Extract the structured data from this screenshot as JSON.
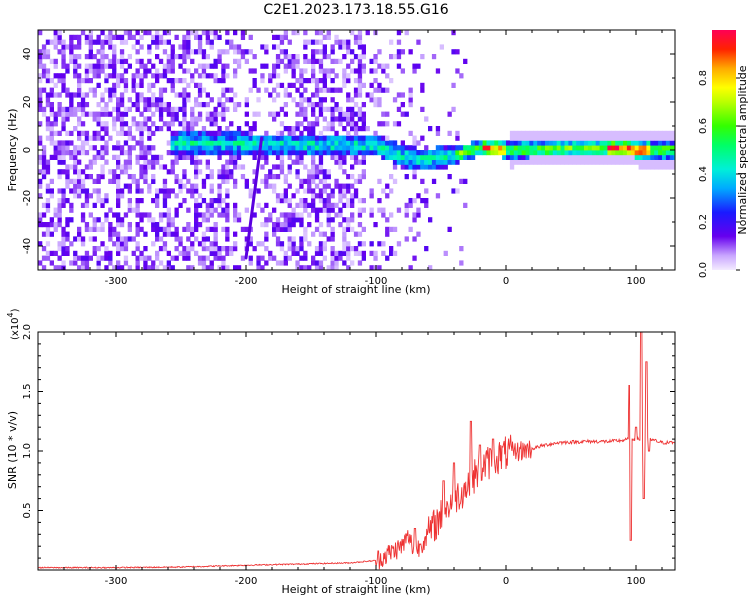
{
  "chart_data": [
    {
      "type": "heatmap",
      "title": "C2E1.2023.173.18.55.G16",
      "xlabel": "Height of straight line (km)",
      "ylabel": "Frequency (Hz)",
      "xlim": [
        -360,
        130
      ],
      "ylim": [
        -50,
        50
      ],
      "xticks": [
        -300,
        -200,
        -100,
        0,
        100
      ],
      "yticks": [
        -40,
        -20,
        0,
        20,
        40
      ],
      "colorbar": {
        "label": "Normalized spectral amplitude",
        "range": [
          0.0,
          1.0
        ],
        "ticks": [
          "0.0",
          "0.2",
          "0.4",
          "0.6",
          "0.8"
        ]
      },
      "ridge": [
        {
          "x": -250,
          "f": 3
        },
        {
          "x": -200,
          "f": 2.5
        },
        {
          "x": -150,
          "f": 2
        },
        {
          "x": -100,
          "f": 2
        },
        {
          "x": -80,
          "f": -3
        },
        {
          "x": -60,
          "f": -4
        },
        {
          "x": -40,
          "f": -2
        },
        {
          "x": -20,
          "f": 1
        },
        {
          "x": 0,
          "f": 0
        },
        {
          "x": 80,
          "f": 1
        },
        {
          "x": 100,
          "f": 0
        },
        {
          "x": 130,
          "f": 0
        }
      ],
      "slant_streak": {
        "x_top": -188,
        "f_top": 5,
        "x_bottom": -200,
        "f_bottom": -45
      }
    },
    {
      "type": "line",
      "xlabel": "Height of straight line (km)",
      "ylabel": "SNR (10 * v/v)",
      "ymultiplier": "(x10",
      "ymultiplier_exp": "4",
      "ymultiplier_close": ")",
      "xlim": [
        -360,
        130
      ],
      "ylim": [
        0,
        2.0
      ],
      "xticks": [
        -300,
        -200,
        -100,
        0,
        100
      ],
      "yticks": [
        "0.5",
        "1.0",
        "1.5",
        "2.0"
      ],
      "line_color": "#ee3333",
      "series": [
        {
          "points": [
            [
              -360,
              0.02
            ],
            [
              -300,
              0.02
            ],
            [
              -250,
              0.025
            ],
            [
              -200,
              0.04
            ],
            [
              -160,
              0.05
            ],
            [
              -120,
              0.06
            ],
            [
              -100,
              0.08
            ],
            [
              -90,
              0.14
            ],
            [
              -80,
              0.2
            ],
            [
              -75,
              0.28
            ],
            [
              -70,
              0.15
            ],
            [
              -60,
              0.3
            ],
            [
              -50,
              0.45
            ],
            [
              -40,
              0.6
            ],
            [
              -30,
              0.7
            ],
            [
              -20,
              0.85
            ],
            [
              -10,
              0.93
            ],
            [
              0,
              0.98
            ],
            [
              10,
              1.0
            ],
            [
              20,
              1.02
            ],
            [
              30,
              1.05
            ],
            [
              40,
              1.07
            ],
            [
              60,
              1.08
            ],
            [
              80,
              1.08
            ],
            [
              90,
              1.09
            ],
            [
              95,
              1.1
            ],
            [
              100,
              1.1
            ],
            [
              110,
              1.1
            ],
            [
              120,
              1.07
            ],
            [
              130,
              1.07
            ]
          ],
          "spikes": [
            [
              -70,
              0.35
            ],
            [
              -48,
              0.75
            ],
            [
              -40,
              0.9
            ],
            [
              -27,
              1.25
            ],
            [
              -20,
              1.05
            ],
            [
              -10,
              1.1
            ],
            [
              95,
              1.55
            ],
            [
              96,
              0.25
            ],
            [
              100,
              1.2
            ],
            [
              104,
              2.0
            ],
            [
              106,
              0.6
            ],
            [
              108,
              1.75
            ],
            [
              110,
              1.0
            ]
          ]
        }
      ]
    }
  ]
}
